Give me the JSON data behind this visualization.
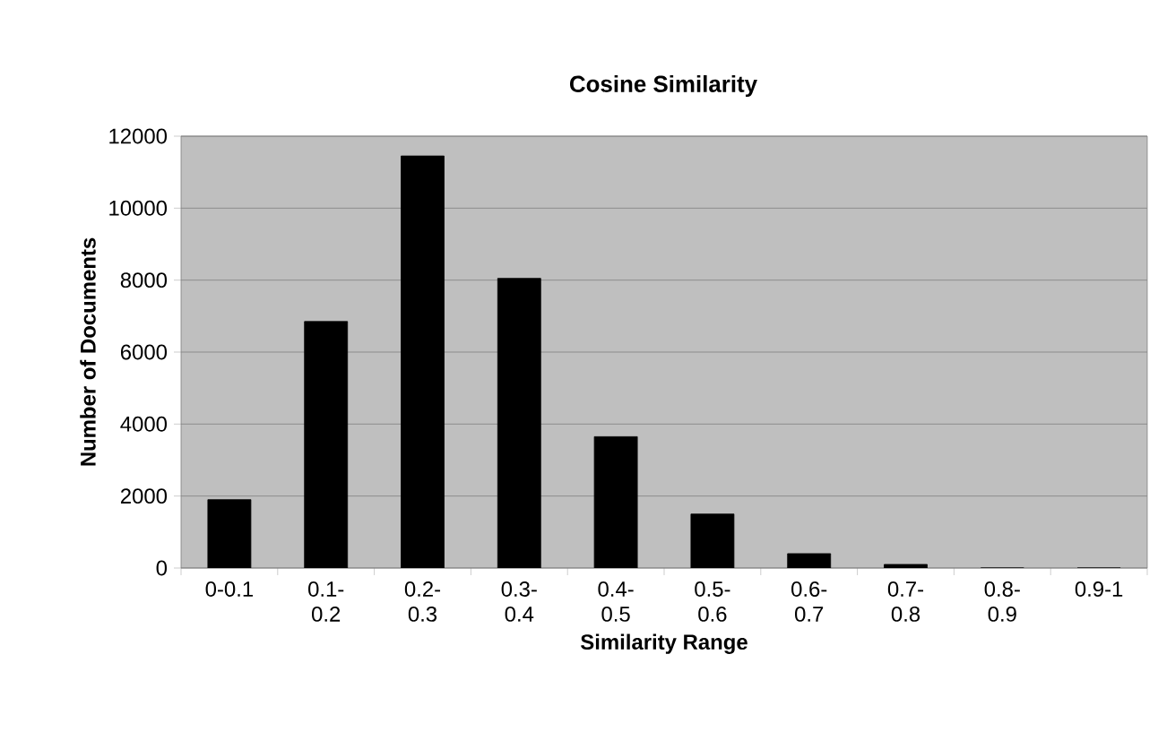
{
  "chart_data": {
    "type": "bar",
    "title": "Cosine Similarity",
    "xlabel": "Similarity Range",
    "ylabel": "Number of Documents",
    "categories": [
      "0-0.1",
      "0.1-0.2",
      "0.2-0.3",
      "0.3-0.4",
      "0.4-0.5",
      "0.5-0.6",
      "0.6-0.7",
      "0.7-0.8",
      "0.8-0.9",
      "0.9-1"
    ],
    "values": [
      1900,
      6850,
      11450,
      8050,
      3650,
      1500,
      400,
      100,
      0,
      0
    ],
    "color": "#000000",
    "ylim": [
      0,
      12000
    ],
    "yticks": [
      0,
      2000,
      4000,
      6000,
      8000,
      10000,
      12000
    ],
    "grid": "y"
  }
}
